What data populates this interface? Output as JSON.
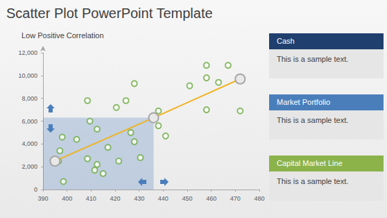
{
  "chart_data": {
    "type": "scatter",
    "title": "Scatter Plot PowerPoint Template",
    "subtitle": "Low Positive Correlation",
    "series": [
      {
        "type": "scatter",
        "color": "#70ad47",
        "marker": "circle-open",
        "x": [
          398.5,
          396.5,
          397,
          398,
          404,
          408.5,
          409.5,
          412.5,
          408.5,
          411.5,
          412.5,
          415,
          417,
          420.5,
          424.5,
          428,
          421.5,
          426.5,
          428,
          430.5,
          438,
          438,
          441,
          451,
          458,
          458,
          458,
          463,
          467,
          472
        ],
        "values": [
          700,
          2500,
          3400,
          4600,
          4400,
          7800,
          6000,
          5300,
          2700,
          1700,
          2200,
          1400,
          3700,
          7200,
          7800,
          9300,
          2500,
          5000,
          4200,
          2800,
          6900,
          5600,
          4700,
          9100,
          10900,
          9800,
          7000,
          9400,
          10900,
          6900
        ]
      },
      {
        "type": "line",
        "color": "#f0b323",
        "marker": "circle",
        "x": [
          395,
          436,
          472
        ],
        "values": [
          2500,
          6300,
          9700
        ]
      }
    ],
    "xlim": [
      390,
      480
    ],
    "xticks": [
      390,
      400,
      410,
      420,
      430,
      440,
      450,
      460,
      470,
      480
    ],
    "ylim": [
      0,
      12000
    ],
    "yticks": [
      0,
      2000,
      4000,
      6000,
      8000,
      10000,
      12000
    ],
    "grid": false
  },
  "panels": [
    {
      "title": "Cash",
      "text": "This is a sample text.",
      "color": "#1f3f6e"
    },
    {
      "title": "Market Portfolio",
      "text": "This is a sample text.",
      "color": "#4a7ebb"
    },
    {
      "title": "Capital Market Line",
      "text": "This is a sample text.",
      "color": "#8bb34a"
    }
  ]
}
